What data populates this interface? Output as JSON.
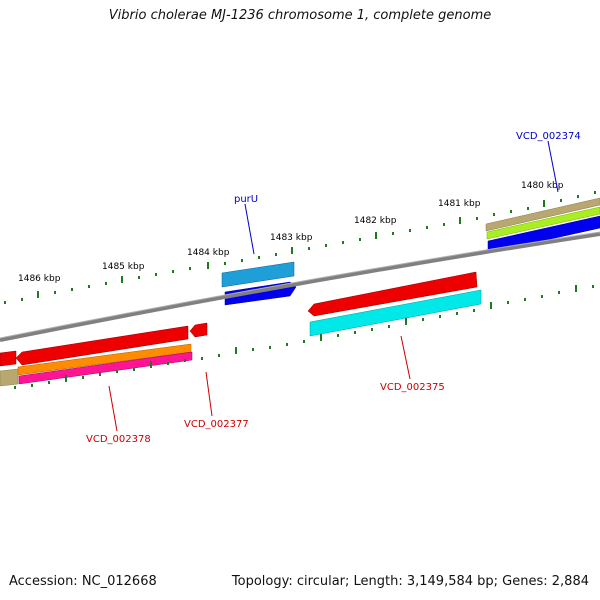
{
  "title": "Vibrio cholerae MJ-1236 chromosome 1, complete genome",
  "footer": {
    "accession": "Accession: NC_012668",
    "summary": "Topology: circular; Length: 3,149,584 bp; Genes: 2,884"
  },
  "ruler": {
    "labels": [
      "1486 kbp",
      "1485 kbp",
      "1484 kbp",
      "1483 kbp",
      "1482 kbp",
      "1481 kbp",
      "1480 kbp"
    ]
  },
  "genes": [
    {
      "label": "purU",
      "color": "#0000cc"
    },
    {
      "label": "VCD_002374",
      "color": "#0000cc"
    },
    {
      "label": "VCD_002375",
      "color": "#cc0000"
    },
    {
      "label": "VCD_002377",
      "color": "#cc0000"
    },
    {
      "label": "VCD_002378",
      "color": "#cc0000"
    }
  ],
  "colors": {
    "tick": "#1f7a1f",
    "backbone": "#808080",
    "red": "#ee0000",
    "blue": "#0000ee",
    "skyblue": "#1e9fd8",
    "cyan": "#00e8e8",
    "olive": "#b8a870",
    "lime": "#a8ee20",
    "orange": "#ff8c00",
    "magenta": "#ff1493"
  }
}
